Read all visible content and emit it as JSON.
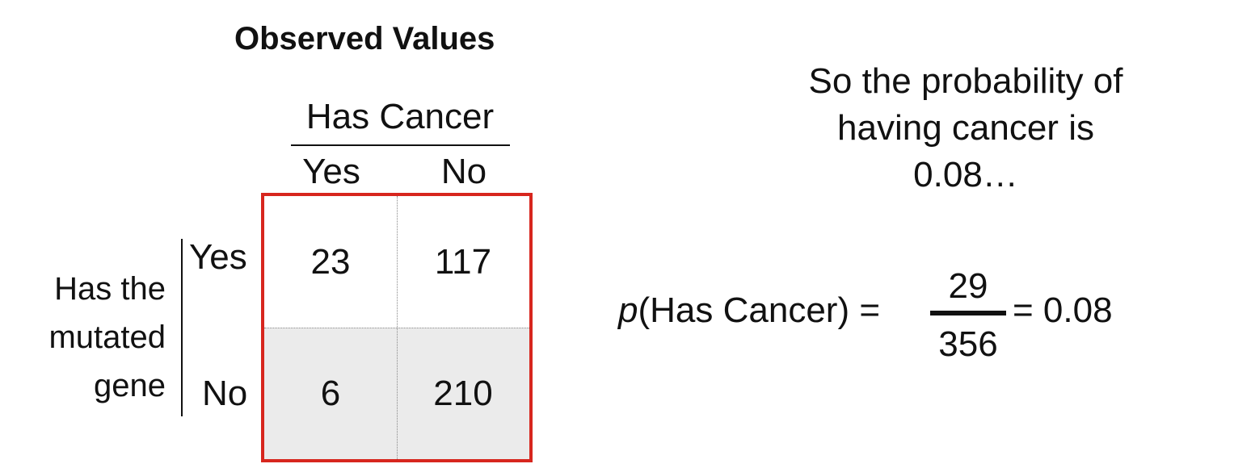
{
  "title": "Observed Values",
  "table": {
    "column_header": "Has Cancer",
    "column_labels": [
      "Yes",
      "No"
    ],
    "row_header_lines": [
      "Has the",
      "mutated",
      "gene"
    ],
    "row_labels": [
      "Yes",
      "No"
    ],
    "cells": [
      [
        "23",
        "117"
      ],
      [
        "6",
        "210"
      ]
    ],
    "highlight_color": "#d7261e",
    "shaded_row_color": "#ebebeb"
  },
  "explanation_lines": [
    "So the probability of",
    "having cancer is",
    "0.08…"
  ],
  "formula": {
    "p": "p",
    "lhs_rest": "(Has Cancer) =",
    "numerator": "29",
    "denominator": "356",
    "rhs": "= 0.08"
  }
}
